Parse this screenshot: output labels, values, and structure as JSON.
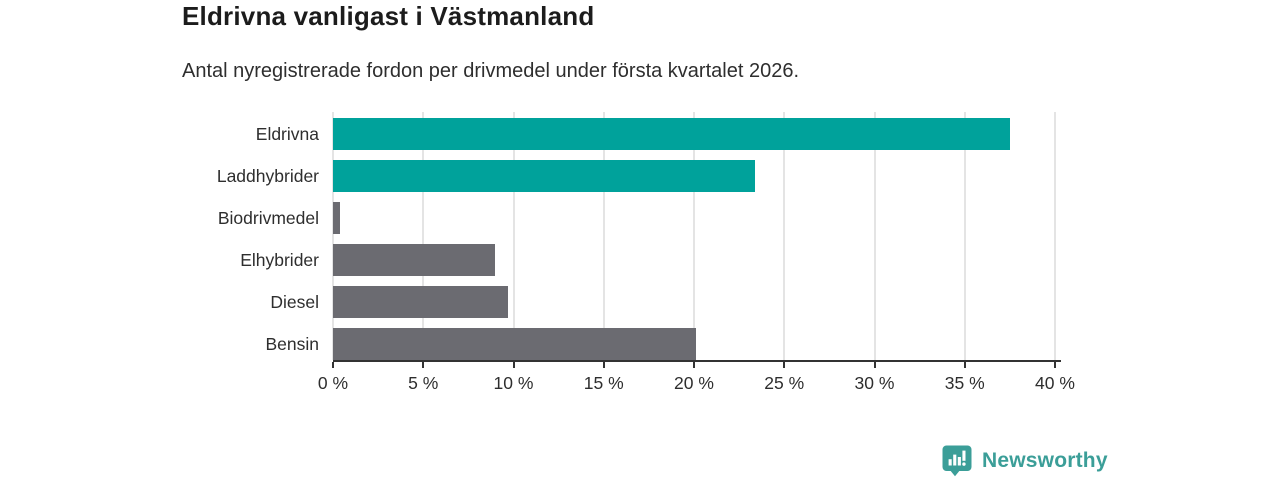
{
  "header": {
    "title": "Eldrivna vanligast i Västmanland",
    "subtitle": "Antal nyregistrerade fordon per drivmedel under första kvartalet 2026."
  },
  "chart_data": {
    "type": "bar",
    "orientation": "horizontal",
    "categories": [
      "Eldrivna",
      "Laddhybrider",
      "Biodrivmedel",
      "Elhybrider",
      "Diesel",
      "Bensin"
    ],
    "values": [
      37.5,
      23.4,
      0.4,
      9.0,
      9.7,
      20.1
    ],
    "unit": "%",
    "bar_colors": [
      "#00a29b",
      "#00a29b",
      "#6b6b71",
      "#6b6b71",
      "#6b6b71",
      "#6b6b71"
    ],
    "highlight_color": "#00a29b",
    "default_color": "#6b6b71",
    "title": "Eldrivna vanligast i Västmanland",
    "subtitle": "Antal nyregistrerade fordon per drivmedel under första kvartalet 2026.",
    "xlabel": "",
    "ylabel": "",
    "xlim": [
      0,
      40
    ],
    "x_ticks": [
      0,
      5,
      10,
      15,
      20,
      25,
      30,
      35,
      40
    ],
    "x_tick_labels": [
      "0 %",
      "5 %",
      "10 %",
      "15 %",
      "20 %",
      "25 %",
      "30 %",
      "35 %",
      "40 %"
    ],
    "grid": true,
    "legend": false
  },
  "footer": {
    "brand": "Newsworthy",
    "brand_color": "#3b9e98"
  }
}
